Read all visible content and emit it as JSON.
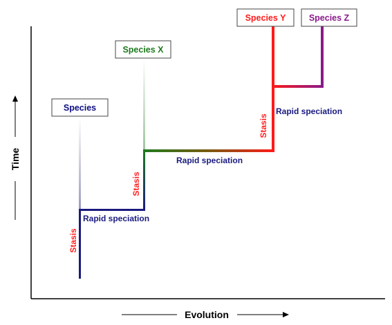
{
  "axes": {
    "x_label": "Evolution",
    "y_label": "Time"
  },
  "species": [
    {
      "name": "Species",
      "color": "#0d0d80"
    },
    {
      "name": "Species X",
      "color": "#1e7a1e"
    },
    {
      "name": "Species Y",
      "color": "#ff1a1a"
    },
    {
      "name": "Species Z",
      "color": "#8a1a8a"
    }
  ],
  "stasis_label": "Stasis",
  "speciation_label": "Rapid speciation",
  "colors": {
    "navy": "#1a1a80",
    "green": "#1e7a1e",
    "red": "#ff1a1a",
    "purple": "#8a1a8a",
    "stasis_text": "#ff2020",
    "speciation_text": "#1a1a80"
  }
}
